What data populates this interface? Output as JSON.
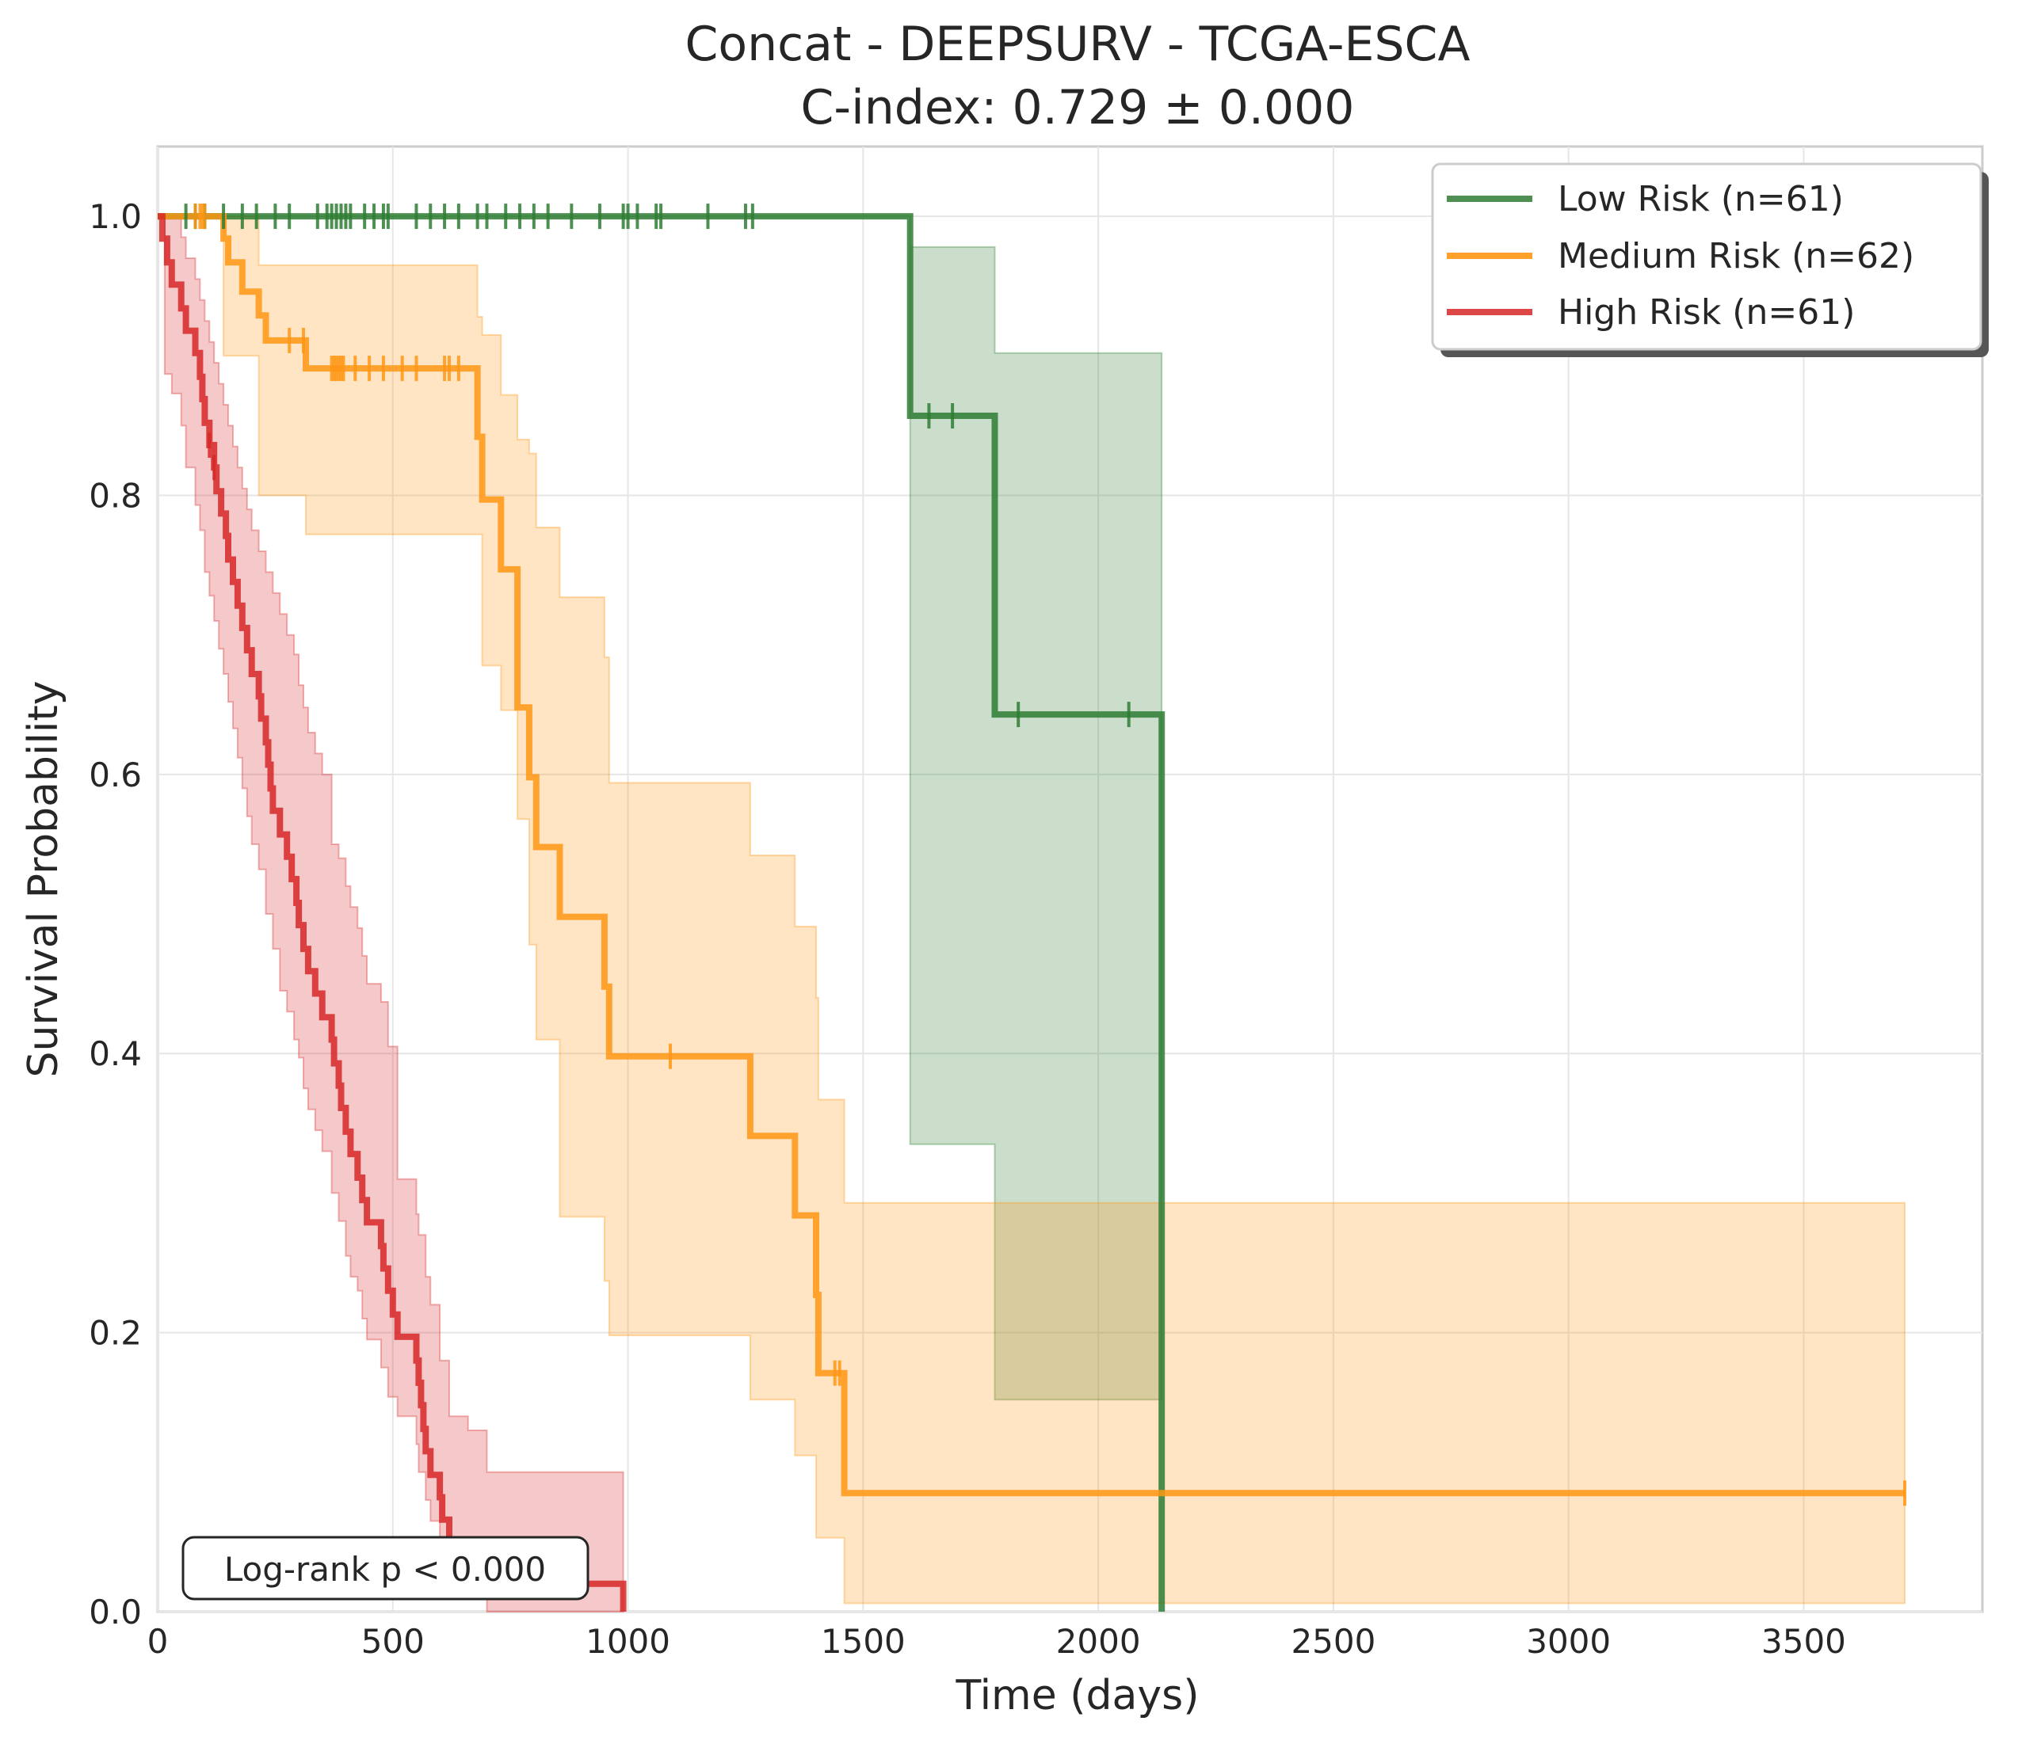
{
  "chart_data": {
    "type": "line",
    "title": "Concat - DEEPSURV - TCGA-ESCA",
    "subtitle": "C-index: 0.729 ± 0.000",
    "xlabel": "Time (days)",
    "ylabel": "Survival Probability",
    "xlim": [
      0,
      3880
    ],
    "ylim": [
      0,
      1.05
    ],
    "x_ticks": [
      0,
      500,
      1000,
      1500,
      2000,
      2500,
      3000,
      3500
    ],
    "y_ticks": [
      0.0,
      0.2,
      0.4,
      0.6,
      0.8,
      1.0
    ],
    "x_tick_labels": [
      "0",
      "500",
      "1000",
      "1500",
      "2000",
      "2500",
      "3000",
      "3500"
    ],
    "y_tick_labels": [
      "0.0",
      "0.2",
      "0.4",
      "0.6",
      "0.8",
      "1.0"
    ],
    "grid": true,
    "legend_position": "top-right",
    "annotation": "Log-rank p < 0.000",
    "series": [
      {
        "name": "Low Risk (n=61)",
        "color": "#2e7d32",
        "steps": [
          [
            0,
            1.0
          ],
          [
            1600,
            0.857
          ],
          [
            1780,
            0.643
          ],
          [
            2135,
            0.0
          ]
        ],
        "end_x": 2135,
        "ci": [
          [
            0,
            1.0,
            1.0
          ],
          [
            1600,
            0.335,
            0.978
          ],
          [
            1780,
            0.152,
            0.902
          ],
          [
            2135,
            0.152,
            0.902
          ]
        ],
        "censors": [
          [
            60,
            1.0
          ],
          [
            80,
            1.0
          ],
          [
            100,
            1.0
          ],
          [
            140,
            1.0
          ],
          [
            180,
            1.0
          ],
          [
            210,
            1.0
          ],
          [
            250,
            1.0
          ],
          [
            280,
            1.0
          ],
          [
            340,
            1.0
          ],
          [
            360,
            1.0
          ],
          [
            370,
            1.0
          ],
          [
            380,
            1.0
          ],
          [
            390,
            1.0
          ],
          [
            400,
            1.0
          ],
          [
            410,
            1.0
          ],
          [
            440,
            1.0
          ],
          [
            460,
            1.0
          ],
          [
            480,
            1.0
          ],
          [
            490,
            1.0
          ],
          [
            550,
            1.0
          ],
          [
            580,
            1.0
          ],
          [
            610,
            1.0
          ],
          [
            640,
            1.0
          ],
          [
            680,
            1.0
          ],
          [
            700,
            1.0
          ],
          [
            740,
            1.0
          ],
          [
            770,
            1.0
          ],
          [
            800,
            1.0
          ],
          [
            830,
            1.0
          ],
          [
            880,
            1.0
          ],
          [
            940,
            1.0
          ],
          [
            990,
            1.0
          ],
          [
            1000,
            1.0
          ],
          [
            1020,
            1.0
          ],
          [
            1060,
            1.0
          ],
          [
            1070,
            1.0
          ],
          [
            1170,
            1.0
          ],
          [
            1250,
            1.0
          ],
          [
            1265,
            1.0
          ],
          [
            1640,
            0.857
          ],
          [
            1690,
            0.857
          ],
          [
            1830,
            0.643
          ],
          [
            2065,
            0.643
          ]
        ]
      },
      {
        "name": "Medium Risk (n=62)",
        "color": "#ff9614",
        "steps": [
          [
            0,
            1.0
          ],
          [
            140,
            0.984
          ],
          [
            150,
            0.967
          ],
          [
            180,
            0.946
          ],
          [
            215,
            0.929
          ],
          [
            230,
            0.911
          ],
          [
            315,
            0.891
          ],
          [
            680,
            0.842
          ],
          [
            690,
            0.797
          ],
          [
            700,
            0.797
          ],
          [
            730,
            0.747
          ],
          [
            765,
            0.648
          ],
          [
            790,
            0.598
          ],
          [
            805,
            0.548
          ],
          [
            855,
            0.498
          ],
          [
            950,
            0.448
          ],
          [
            960,
            0.398
          ],
          [
            1260,
            0.341
          ],
          [
            1355,
            0.284
          ],
          [
            1400,
            0.227
          ],
          [
            1405,
            0.171
          ],
          [
            1460,
            0.085
          ]
        ],
        "end_x": 3715,
        "ci": [
          [
            0,
            1.0,
            1.0
          ],
          [
            140,
            0.9,
            1.0
          ],
          [
            215,
            0.8,
            0.965
          ],
          [
            315,
            0.772,
            0.965
          ],
          [
            680,
            0.772,
            0.928
          ],
          [
            690,
            0.678,
            0.915
          ],
          [
            730,
            0.646,
            0.872
          ],
          [
            765,
            0.568,
            0.84
          ],
          [
            790,
            0.478,
            0.83
          ],
          [
            805,
            0.41,
            0.777
          ],
          [
            855,
            0.283,
            0.727
          ],
          [
            950,
            0.237,
            0.684
          ],
          [
            960,
            0.198,
            0.594
          ],
          [
            1260,
            0.152,
            0.542
          ],
          [
            1355,
            0.112,
            0.491
          ],
          [
            1400,
            0.053,
            0.44
          ],
          [
            1405,
            0.053,
            0.367
          ],
          [
            1460,
            0.006,
            0.293
          ],
          [
            3715,
            0.006,
            0.293
          ]
        ],
        "censors": [
          [
            80,
            1.0
          ],
          [
            90,
            1.0
          ],
          [
            95,
            1.0
          ],
          [
            100,
            1.0
          ],
          [
            280,
            0.911
          ],
          [
            310,
            0.911
          ],
          [
            370,
            0.891
          ],
          [
            375,
            0.891
          ],
          [
            380,
            0.891
          ],
          [
            385,
            0.891
          ],
          [
            390,
            0.891
          ],
          [
            395,
            0.891
          ],
          [
            420,
            0.891
          ],
          [
            450,
            0.891
          ],
          [
            480,
            0.891
          ],
          [
            520,
            0.891
          ],
          [
            550,
            0.891
          ],
          [
            610,
            0.891
          ],
          [
            620,
            0.891
          ],
          [
            640,
            0.891
          ],
          [
            1090,
            0.398
          ],
          [
            1440,
            0.171
          ],
          [
            1450,
            0.171
          ],
          [
            3715,
            0.085
          ]
        ]
      },
      {
        "name": "High Risk (n=61)",
        "color": "#d62728",
        "steps": [
          [
            0,
            1.0
          ],
          [
            10,
            0.984
          ],
          [
            20,
            0.967
          ],
          [
            30,
            0.951
          ],
          [
            50,
            0.934
          ],
          [
            60,
            0.918
          ],
          [
            80,
            0.902
          ],
          [
            90,
            0.885
          ],
          [
            95,
            0.869
          ],
          [
            100,
            0.852
          ],
          [
            110,
            0.836
          ],
          [
            120,
            0.82
          ],
          [
            125,
            0.803
          ],
          [
            135,
            0.787
          ],
          [
            145,
            0.771
          ],
          [
            150,
            0.754
          ],
          [
            160,
            0.738
          ],
          [
            170,
            0.721
          ],
          [
            180,
            0.705
          ],
          [
            190,
            0.689
          ],
          [
            200,
            0.672
          ],
          [
            215,
            0.656
          ],
          [
            220,
            0.64
          ],
          [
            230,
            0.623
          ],
          [
            235,
            0.607
          ],
          [
            240,
            0.59
          ],
          [
            245,
            0.574
          ],
          [
            260,
            0.557
          ],
          [
            275,
            0.541
          ],
          [
            285,
            0.525
          ],
          [
            295,
            0.508
          ],
          [
            300,
            0.492
          ],
          [
            310,
            0.475
          ],
          [
            320,
            0.459
          ],
          [
            335,
            0.443
          ],
          [
            350,
            0.426
          ],
          [
            370,
            0.41
          ],
          [
            375,
            0.393
          ],
          [
            385,
            0.377
          ],
          [
            390,
            0.361
          ],
          [
            400,
            0.344
          ],
          [
            410,
            0.328
          ],
          [
            425,
            0.311
          ],
          [
            435,
            0.295
          ],
          [
            445,
            0.279
          ],
          [
            475,
            0.262
          ],
          [
            480,
            0.246
          ],
          [
            490,
            0.23
          ],
          [
            500,
            0.213
          ],
          [
            510,
            0.197
          ],
          [
            550,
            0.18
          ],
          [
            555,
            0.164
          ],
          [
            560,
            0.148
          ],
          [
            565,
            0.131
          ],
          [
            570,
            0.115
          ],
          [
            580,
            0.098
          ],
          [
            600,
            0.082
          ],
          [
            605,
            0.066
          ],
          [
            620,
            0.049
          ],
          [
            660,
            0.033
          ],
          [
            700,
            0.02
          ],
          [
            990,
            0.0
          ]
        ],
        "end_x": 990,
        "ci": [
          [
            0,
            1.0,
            1.0
          ],
          [
            15,
            0.887,
            1.0
          ],
          [
            30,
            0.873,
            1.0
          ],
          [
            50,
            0.85,
            0.985
          ],
          [
            60,
            0.82,
            0.97
          ],
          [
            80,
            0.793,
            0.955
          ],
          [
            90,
            0.775,
            0.94
          ],
          [
            100,
            0.745,
            0.925
          ],
          [
            110,
            0.728,
            0.91
          ],
          [
            120,
            0.71,
            0.895
          ],
          [
            130,
            0.69,
            0.88
          ],
          [
            140,
            0.672,
            0.865
          ],
          [
            150,
            0.652,
            0.85
          ],
          [
            160,
            0.633,
            0.835
          ],
          [
            170,
            0.612,
            0.82
          ],
          [
            180,
            0.59,
            0.805
          ],
          [
            190,
            0.57,
            0.79
          ],
          [
            200,
            0.55,
            0.775
          ],
          [
            215,
            0.532,
            0.76
          ],
          [
            230,
            0.5,
            0.745
          ],
          [
            245,
            0.475,
            0.73
          ],
          [
            260,
            0.445,
            0.715
          ],
          [
            275,
            0.43,
            0.7
          ],
          [
            290,
            0.41,
            0.686
          ],
          [
            300,
            0.397,
            0.664
          ],
          [
            310,
            0.375,
            0.648
          ],
          [
            320,
            0.36,
            0.63
          ],
          [
            335,
            0.345,
            0.615
          ],
          [
            350,
            0.33,
            0.6
          ],
          [
            370,
            0.3,
            0.55
          ],
          [
            385,
            0.28,
            0.54
          ],
          [
            400,
            0.255,
            0.52
          ],
          [
            410,
            0.24,
            0.505
          ],
          [
            425,
            0.23,
            0.49
          ],
          [
            435,
            0.21,
            0.47
          ],
          [
            445,
            0.195,
            0.45
          ],
          [
            475,
            0.175,
            0.437
          ],
          [
            490,
            0.154,
            0.405
          ],
          [
            510,
            0.14,
            0.31
          ],
          [
            550,
            0.12,
            0.285
          ],
          [
            555,
            0.1,
            0.27
          ],
          [
            570,
            0.08,
            0.24
          ],
          [
            580,
            0.065,
            0.22
          ],
          [
            600,
            0.045,
            0.18
          ],
          [
            620,
            0.03,
            0.14
          ],
          [
            660,
            0.01,
            0.13
          ],
          [
            700,
            0.0,
            0.1
          ],
          [
            990,
            0.0,
            0.1
          ]
        ],
        "censors": [
          [
            110,
            0.836
          ],
          [
            120,
            0.82
          ]
        ]
      }
    ]
  }
}
